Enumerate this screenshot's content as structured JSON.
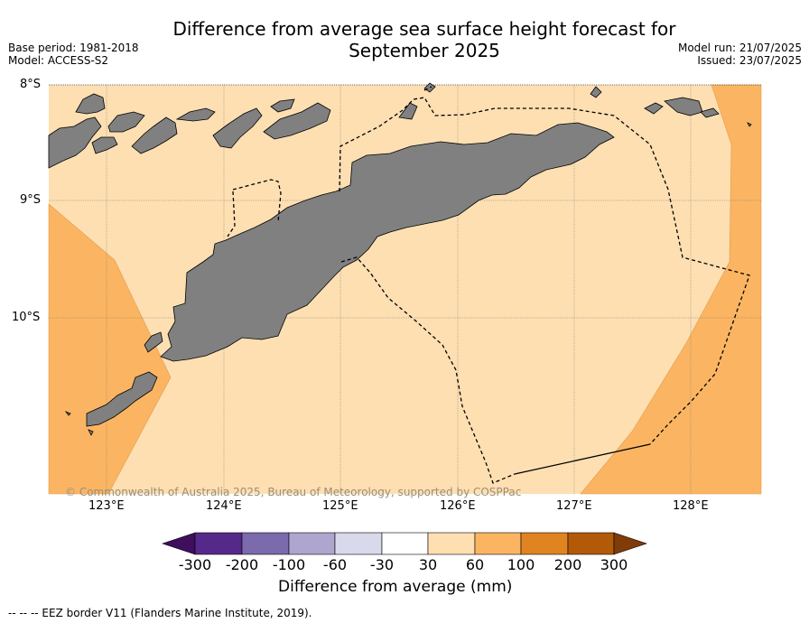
{
  "title": "Difference from average sea surface height forecast for September 2025",
  "title_line1": "Difference from average sea surface height forecast for",
  "title_line2": "September 2025",
  "base_period": "Base period: 1981-2018",
  "model": "Model: ACCESS-S2",
  "model_run": "Model run: 21/07/2025",
  "issued": "Issued: 23/07/2025",
  "lat_labels": [
    "8°S",
    "9°S",
    "10°S"
  ],
  "lon_labels": [
    "123°E",
    "124°E",
    "125°E",
    "126°E",
    "127°E",
    "128°E"
  ],
  "copyright": "© Commonwealth of Australia 2025, Bureau of Meteorology, supported by COSPPac",
  "colorbar": {
    "label": "Difference from average (mm)",
    "ticks": [
      "-300",
      "-200",
      "-100",
      "-60",
      "-30",
      "30",
      "60",
      "100",
      "200",
      "300"
    ],
    "colors": [
      "#3f0e5c",
      "#55298a",
      "#7b6aac",
      "#aea6cf",
      "#d8d9eb",
      "#ffffff",
      "#fddfb2",
      "#fbb562",
      "#df8421",
      "#b35a08",
      "#7f3b08"
    ]
  },
  "colors": {
    "sea_base": "#fddfb2",
    "sea_high": "#fbb562",
    "land": "#808080"
  },
  "footnote": "--  --  -- EEZ border V11 (Flanders Marine Institute, 2019)."
}
